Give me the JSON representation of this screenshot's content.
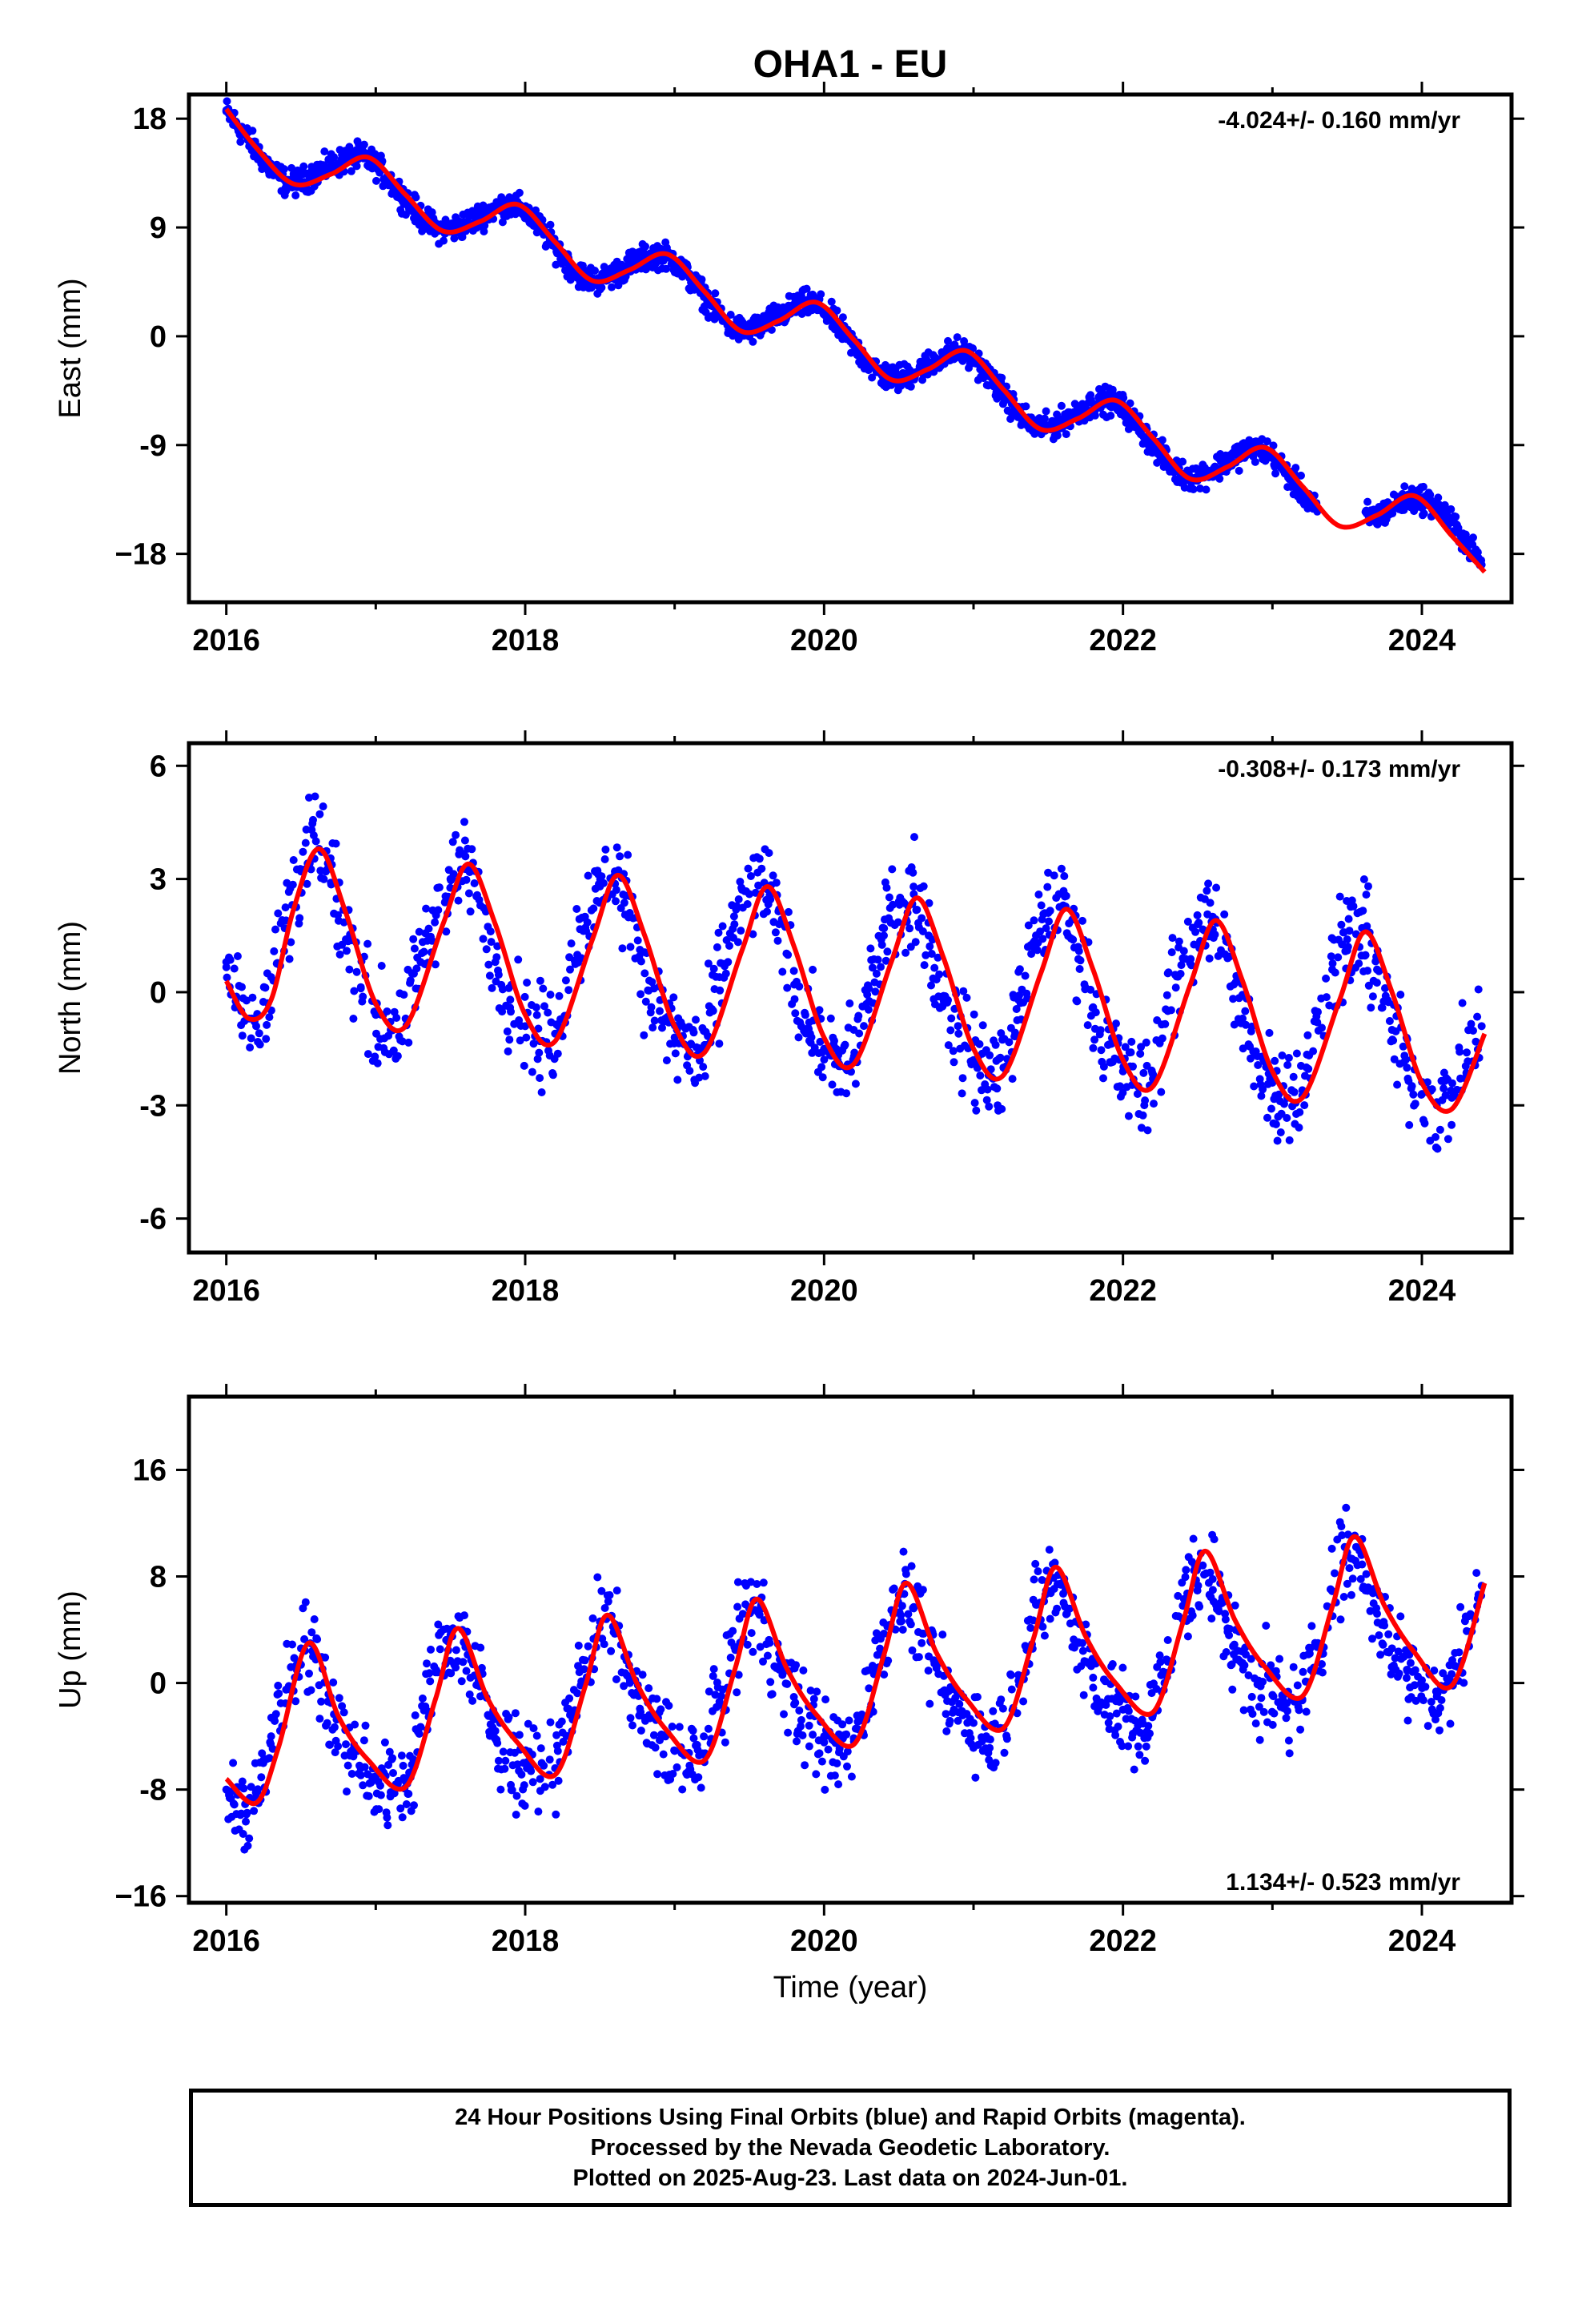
{
  "title": "OHA1 - EU",
  "colors": {
    "final_orbits": "#0000ff",
    "rapid_orbits": "#ff00ff",
    "model_fit": "#ff0000",
    "axes": "#000000"
  },
  "footer": {
    "line1": "24 Hour Positions Using Final Orbits (blue) and Rapid Orbits (magenta).",
    "line2": "Processed by the Nevada Geodetic Laboratory.",
    "line3": "Plotted on 2025-Aug-23. Last data on 2024-Jun-01."
  },
  "chart_data": [
    {
      "type": "scatter",
      "component": "east",
      "ylabel": "East (mm)",
      "xlabel": "",
      "rate_label": "-4.024+/- 0.160 mm/yr",
      "rate_position": "top-right",
      "xlim": [
        2015.75,
        2024.6
      ],
      "ylim": [
        -22.0,
        20.0
      ],
      "xticks": [
        2016,
        2018,
        2020,
        2022,
        2024
      ],
      "xtick_labels": [
        "2016",
        "2018",
        "2020",
        "2022",
        "2024"
      ],
      "yticks": [
        18,
        9,
        0,
        -9,
        -18
      ],
      "ytick_labels": [
        "18",
        "9",
        "0",
        "-9",
        "−18"
      ],
      "grid": false,
      "series": [
        {
          "role": "fit",
          "x": [
            2016.0,
            2016.2,
            2016.45,
            2016.7,
            2016.95,
            2017.2,
            2017.45,
            2017.7,
            2017.95,
            2018.2,
            2018.45,
            2018.7,
            2018.95,
            2019.2,
            2019.45,
            2019.7,
            2019.95,
            2020.2,
            2020.45,
            2020.7,
            2020.95,
            2021.2,
            2021.45,
            2021.7,
            2021.95,
            2022.2,
            2022.45,
            2022.7,
            2022.95,
            2023.2,
            2023.45,
            2023.7,
            2023.95,
            2024.2,
            2024.42
          ],
          "y": [
            18.8,
            15.6,
            12.6,
            13.4,
            14.8,
            11.7,
            8.7,
            9.5,
            10.9,
            7.8,
            4.6,
            5.5,
            6.8,
            3.7,
            0.4,
            1.3,
            2.8,
            -0.3,
            -3.6,
            -2.7,
            -1.2,
            -4.4,
            -7.7,
            -6.8,
            -5.3,
            -8.4,
            -11.8,
            -10.8,
            -9.2,
            -12.4,
            -15.7,
            -14.8,
            -13.2,
            -16.5,
            -19.5
          ]
        },
        {
          "role": "daily",
          "x": [
            2016.0,
            2016.1,
            2016.2,
            2016.3,
            2016.4,
            2016.5,
            2016.6,
            2016.7,
            2016.8,
            2016.9,
            2017.0,
            2017.1,
            2017.2,
            2017.3,
            2017.4,
            2017.5,
            2017.6,
            2017.7,
            2017.8,
            2017.9,
            2018.0,
            2018.1,
            2018.2,
            2018.3,
            2018.4,
            2018.5,
            2018.6,
            2018.7,
            2018.8,
            2018.9,
            2019.0,
            2019.1,
            2019.2,
            2019.3,
            2019.4,
            2019.5,
            2019.6,
            2019.7,
            2019.8,
            2019.9,
            2020.0,
            2020.1,
            2020.2,
            2020.3,
            2020.4,
            2020.5,
            2020.6,
            2020.7,
            2020.8,
            2020.9,
            2021.0,
            2021.1,
            2021.2,
            2021.3,
            2021.4,
            2021.5,
            2021.6,
            2021.7,
            2021.8,
            2021.9,
            2022.0,
            2022.1,
            2022.2,
            2022.3,
            2022.4,
            2022.5,
            2022.6,
            2022.7,
            2022.8,
            2022.9,
            2023.0,
            2023.1,
            2023.2,
            2023.3,
            2023.7,
            2023.8,
            2023.9,
            2024.0,
            2024.1,
            2024.2,
            2024.3,
            2024.4
          ],
          "y": [
            18.6,
            17.0,
            15.4,
            13.8,
            12.7,
            12.8,
            13.5,
            14.1,
            14.6,
            14.9,
            14.2,
            12.8,
            11.3,
            9.9,
            8.9,
            8.8,
            9.3,
            9.9,
            10.6,
            10.9,
            10.4,
            9.0,
            7.4,
            5.8,
            4.8,
            4.6,
            5.2,
            5.9,
            6.5,
            6.8,
            6.3,
            4.8,
            3.3,
            1.7,
            0.6,
            0.4,
            1.0,
            1.7,
            2.4,
            2.8,
            2.2,
            0.8,
            -0.8,
            -2.3,
            -3.3,
            -3.5,
            -3.0,
            -2.3,
            -1.6,
            -1.2,
            -1.8,
            -3.3,
            -4.8,
            -6.4,
            -7.4,
            -7.6,
            -7.0,
            -6.2,
            -5.6,
            -5.3,
            -5.9,
            -7.4,
            -8.9,
            -10.5,
            -11.5,
            -11.6,
            -11.1,
            -10.3,
            -9.6,
            -9.2,
            -9.9,
            -11.4,
            -12.9,
            -14.5,
            -14.9,
            -14.1,
            -13.5,
            -13.4,
            -14.1,
            -15.4,
            -17.1,
            -18.9
          ]
        }
      ]
    },
    {
      "type": "scatter",
      "component": "north",
      "ylabel": "North (mm)",
      "xlabel": "",
      "rate_label": "-0.308+/- 0.173 mm/yr",
      "rate_position": "top-right",
      "xlim": [
        2015.75,
        2024.6
      ],
      "ylim": [
        -6.9,
        6.6
      ],
      "xticks": [
        2016,
        2018,
        2020,
        2022,
        2024
      ],
      "xtick_labels": [
        "2016",
        "2018",
        "2020",
        "2022",
        "2024"
      ],
      "yticks": [
        6,
        3,
        0,
        -3,
        -6
      ],
      "ytick_labels": [
        "6",
        "3",
        "0",
        "-3",
        "-6"
      ],
      "grid": false,
      "series": [
        {
          "role": "fit",
          "x": [
            2016.0,
            2016.15,
            2016.3,
            2016.45,
            2016.62,
            2016.8,
            2017.0,
            2017.2,
            2017.45,
            2017.62,
            2017.8,
            2018.0,
            2018.2,
            2018.45,
            2018.62,
            2018.8,
            2019.0,
            2019.2,
            2019.45,
            2019.62,
            2019.8,
            2020.0,
            2020.2,
            2020.45,
            2020.62,
            2020.8,
            2021.0,
            2021.2,
            2021.45,
            2021.62,
            2021.8,
            2022.0,
            2022.2,
            2022.45,
            2022.62,
            2022.8,
            2023.0,
            2023.2,
            2023.45,
            2023.62,
            2023.8,
            2024.0,
            2024.2,
            2024.42
          ],
          "y": [
            0.3,
            -0.7,
            -0.2,
            2.2,
            3.8,
            2.1,
            -0.3,
            -0.9,
            1.8,
            3.4,
            1.8,
            -0.6,
            -1.3,
            1.4,
            3.1,
            1.5,
            -0.9,
            -1.6,
            1.1,
            2.8,
            1.2,
            -1.2,
            -1.9,
            0.8,
            2.5,
            0.9,
            -1.5,
            -2.2,
            0.5,
            2.2,
            0.6,
            -1.8,
            -2.5,
            0.2,
            1.9,
            0.3,
            -2.1,
            -2.8,
            -0.2,
            1.6,
            0.0,
            -2.4,
            -3.1,
            -1.1
          ]
        },
        {
          "role": "daily",
          "x": [
            2016.0,
            2016.1,
            2016.2,
            2016.3,
            2016.4,
            2016.5,
            2016.6,
            2016.7,
            2016.8,
            2016.9,
            2017.0,
            2017.1,
            2017.2,
            2017.3,
            2017.4,
            2017.5,
            2017.6,
            2017.7,
            2017.8,
            2017.9,
            2018.0,
            2018.1,
            2018.2,
            2018.3,
            2018.4,
            2018.5,
            2018.6,
            2018.7,
            2018.8,
            2018.9,
            2019.0,
            2019.1,
            2019.2,
            2019.3,
            2019.4,
            2019.5,
            2019.6,
            2019.7,
            2019.8,
            2019.9,
            2020.0,
            2020.1,
            2020.2,
            2020.3,
            2020.4,
            2020.5,
            2020.6,
            2020.7,
            2020.8,
            2020.9,
            2021.0,
            2021.1,
            2021.2,
            2021.3,
            2021.4,
            2021.5,
            2021.6,
            2021.7,
            2021.8,
            2021.9,
            2022.0,
            2022.1,
            2022.2,
            2022.3,
            2022.4,
            2022.5,
            2022.6,
            2022.7,
            2022.8,
            2022.9,
            2023.0,
            2023.1,
            2023.2,
            2023.3,
            2023.4,
            2023.5,
            2023.6,
            2023.7,
            2023.8,
            2023.9,
            2024.0,
            2024.1,
            2024.2,
            2024.3,
            2024.4
          ],
          "y": [
            0.8,
            -0.5,
            -0.9,
            0.4,
            1.9,
            3.2,
            4.0,
            2.9,
            1.4,
            0.1,
            -0.6,
            -1.0,
            -0.7,
            0.8,
            2.1,
            3.0,
            3.6,
            2.3,
            0.8,
            -0.2,
            -0.9,
            -1.3,
            -1.1,
            0.6,
            2.0,
            2.8,
            3.2,
            2.1,
            0.5,
            -0.5,
            -1.2,
            -1.6,
            -1.4,
            0.4,
            1.8,
            2.6,
            2.9,
            1.8,
            0.2,
            -0.8,
            -1.5,
            -1.9,
            -1.7,
            0.1,
            1.5,
            2.4,
            2.6,
            1.5,
            -0.1,
            -1.1,
            -1.8,
            -2.2,
            -2.0,
            -0.2,
            1.2,
            2.1,
            2.3,
            1.2,
            -0.4,
            -1.4,
            -2.1,
            -2.5,
            -2.3,
            -0.5,
            0.9,
            1.8,
            2.0,
            0.9,
            -0.7,
            -1.7,
            -2.4,
            -2.8,
            -2.6,
            -0.8,
            0.6,
            1.4,
            1.7,
            0.6,
            -1.0,
            -2.0,
            -2.7,
            -3.0,
            -2.8,
            -1.6,
            -0.9
          ]
        }
      ]
    },
    {
      "type": "scatter",
      "component": "up",
      "ylabel": "Up (mm)",
      "xlabel": "Time (year)",
      "rate_label": "1.134+/- 0.523 mm/yr",
      "rate_position": "bottom-right",
      "xlim": [
        2015.75,
        2024.6
      ],
      "ylim": [
        -16.5,
        21.5
      ],
      "xticks": [
        2016,
        2018,
        2020,
        2022,
        2024
      ],
      "xtick_labels": [
        "2016",
        "2018",
        "2020",
        "2022",
        "2024"
      ],
      "yticks": [
        16,
        8,
        0,
        -8,
        -16
      ],
      "ytick_labels": [
        "16",
        "8",
        "0",
        "-8",
        "−16"
      ],
      "grid": false,
      "series": [
        {
          "role": "fit",
          "x": [
            2016.0,
            2016.2,
            2016.35,
            2016.55,
            2016.75,
            2016.95,
            2017.2,
            2017.4,
            2017.55,
            2017.75,
            2017.95,
            2018.2,
            2018.4,
            2018.55,
            2018.75,
            2018.95,
            2019.2,
            2019.4,
            2019.55,
            2019.75,
            2019.95,
            2020.2,
            2020.4,
            2020.55,
            2020.75,
            2020.95,
            2021.2,
            2021.4,
            2021.55,
            2021.75,
            2021.95,
            2022.2,
            2022.4,
            2022.55,
            2022.75,
            2022.95,
            2023.2,
            2023.4,
            2023.55,
            2023.75,
            2023.95,
            2024.2,
            2024.42
          ],
          "y": [
            -7.2,
            -9.0,
            -4.8,
            3.0,
            -2.5,
            -5.8,
            -7.8,
            -1.2,
            4.1,
            -1.2,
            -4.5,
            -6.9,
            -0.3,
            5.1,
            -0.1,
            -3.6,
            -5.8,
            0.9,
            6.3,
            1.1,
            -2.4,
            -4.6,
            2.1,
            7.5,
            2.3,
            -1.2,
            -3.4,
            3.3,
            8.7,
            3.5,
            0.0,
            -2.2,
            4.5,
            9.9,
            4.7,
            1.2,
            -1.0,
            5.7,
            11.0,
            5.8,
            2.3,
            -0.2,
            7.5
          ]
        },
        {
          "role": "daily",
          "x": [
            2016.0,
            2016.1,
            2016.2,
            2016.3,
            2016.4,
            2016.5,
            2016.6,
            2016.7,
            2016.8,
            2016.9,
            2017.0,
            2017.1,
            2017.2,
            2017.3,
            2017.4,
            2017.5,
            2017.6,
            2017.7,
            2017.8,
            2017.9,
            2018.0,
            2018.1,
            2018.2,
            2018.3,
            2018.4,
            2018.5,
            2018.6,
            2018.7,
            2018.8,
            2018.9,
            2019.0,
            2019.1,
            2019.2,
            2019.3,
            2019.4,
            2019.5,
            2019.6,
            2019.7,
            2019.8,
            2019.9,
            2020.0,
            2020.1,
            2020.2,
            2020.3,
            2020.4,
            2020.5,
            2020.6,
            2020.7,
            2020.8,
            2020.9,
            2021.0,
            2021.1,
            2021.2,
            2021.3,
            2021.4,
            2021.5,
            2021.6,
            2021.7,
            2021.8,
            2021.9,
            2022.0,
            2022.1,
            2022.2,
            2022.3,
            2022.4,
            2022.5,
            2022.6,
            2022.7,
            2022.8,
            2022.9,
            2023.0,
            2023.1,
            2023.2,
            2023.3,
            2023.4,
            2023.5,
            2023.6,
            2023.7,
            2023.8,
            2023.9,
            2024.0,
            2024.1,
            2024.2,
            2024.3,
            2024.4
          ],
          "y": [
            -8.0,
            -9.8,
            -8.6,
            -4.0,
            -0.5,
            2.6,
            2.0,
            -1.5,
            -4.6,
            -6.4,
            -7.0,
            -8.2,
            -7.4,
            -3.3,
            0.8,
            3.6,
            2.7,
            -1.0,
            -3.6,
            -5.2,
            -6.0,
            -7.2,
            -6.4,
            -2.4,
            1.7,
            4.6,
            3.7,
            0.0,
            -2.6,
            -4.3,
            -5.1,
            -6.2,
            -5.4,
            -1.4,
            2.7,
            5.6,
            4.7,
            1.0,
            -1.6,
            -3.2,
            -4.0,
            -5.2,
            -4.4,
            -0.4,
            3.7,
            6.6,
            5.7,
            2.0,
            -0.6,
            -2.2,
            -3.0,
            -4.2,
            -3.4,
            0.6,
            4.7,
            7.6,
            6.7,
            3.0,
            0.4,
            -1.2,
            -2.0,
            -3.2,
            -2.4,
            1.6,
            5.8,
            8.7,
            7.8,
            4.1,
            1.5,
            -0.1,
            -0.9,
            -2.1,
            -1.3,
            2.7,
            6.9,
            9.8,
            8.9,
            5.2,
            2.6,
            1.0,
            0.2,
            -1.0,
            0.1,
            3.9,
            7.3
          ]
        }
      ]
    }
  ]
}
